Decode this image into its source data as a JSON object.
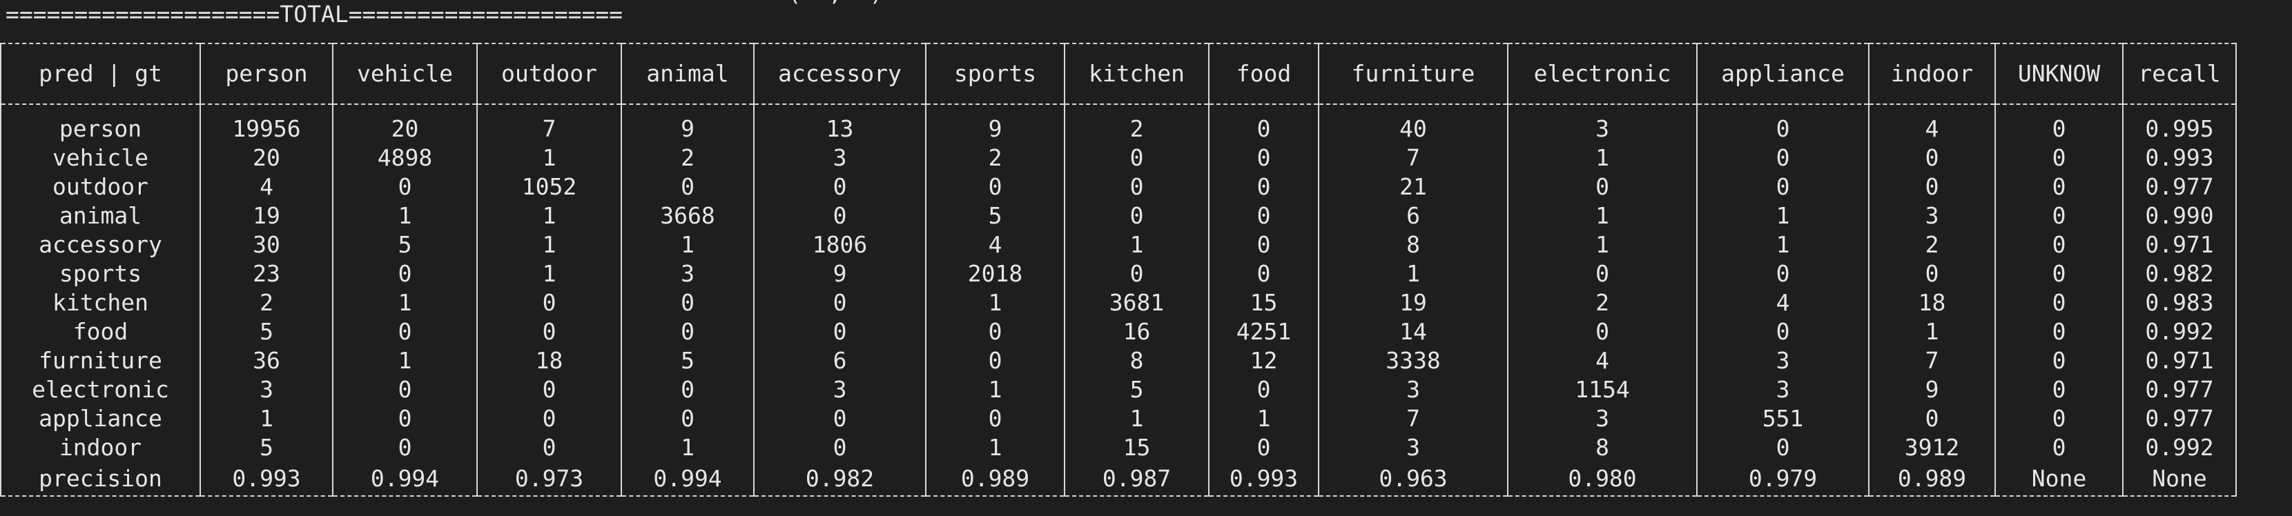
{
  "terminal": {
    "cut_off_line": "= = = = = = = = = = = = = = = = = = = = = = = = = = = =  (  ,  )",
    "banner": "====================TOTAL===================="
  },
  "table": {
    "headers": [
      "pred | gt",
      "person",
      "vehicle",
      "outdoor",
      "animal",
      "accessory",
      "sports",
      "kitchen",
      "food",
      "furniture",
      "electronic",
      "appliance",
      "indoor",
      "UNKNOW",
      "recall"
    ],
    "rows": [
      [
        "person",
        "19956",
        "20",
        "7",
        "9",
        "13",
        "9",
        "2",
        "0",
        "40",
        "3",
        "0",
        "4",
        "0",
        "0.995"
      ],
      [
        "vehicle",
        "20",
        "4898",
        "1",
        "2",
        "3",
        "2",
        "0",
        "0",
        "7",
        "1",
        "0",
        "0",
        "0",
        "0.993"
      ],
      [
        "outdoor",
        "4",
        "0",
        "1052",
        "0",
        "0",
        "0",
        "0",
        "0",
        "21",
        "0",
        "0",
        "0",
        "0",
        "0.977"
      ],
      [
        "animal",
        "19",
        "1",
        "1",
        "3668",
        "0",
        "5",
        "0",
        "0",
        "6",
        "1",
        "1",
        "3",
        "0",
        "0.990"
      ],
      [
        "accessory",
        "30",
        "5",
        "1",
        "1",
        "1806",
        "4",
        "1",
        "0",
        "8",
        "1",
        "1",
        "2",
        "0",
        "0.971"
      ],
      [
        "sports",
        "23",
        "0",
        "1",
        "3",
        "9",
        "2018",
        "0",
        "0",
        "1",
        "0",
        "0",
        "0",
        "0",
        "0.982"
      ],
      [
        "kitchen",
        "2",
        "1",
        "0",
        "0",
        "0",
        "1",
        "3681",
        "15",
        "19",
        "2",
        "4",
        "18",
        "0",
        "0.983"
      ],
      [
        "food",
        "5",
        "0",
        "0",
        "0",
        "0",
        "0",
        "16",
        "4251",
        "14",
        "0",
        "0",
        "1",
        "0",
        "0.992"
      ],
      [
        "furniture",
        "36",
        "1",
        "18",
        "5",
        "6",
        "0",
        "8",
        "12",
        "3338",
        "4",
        "3",
        "7",
        "0",
        "0.971"
      ],
      [
        "electronic",
        "3",
        "0",
        "0",
        "0",
        "3",
        "1",
        "5",
        "0",
        "3",
        "1154",
        "3",
        "9",
        "0",
        "0.977"
      ],
      [
        "appliance",
        "1",
        "0",
        "0",
        "0",
        "0",
        "0",
        "1",
        "1",
        "7",
        "3",
        "551",
        "0",
        "0",
        "0.977"
      ],
      [
        "indoor",
        "5",
        "0",
        "0",
        "1",
        "0",
        "1",
        "15",
        "0",
        "3",
        "8",
        "0",
        "3912",
        "0",
        "0.992"
      ],
      [
        "precision",
        "0.993",
        "0.994",
        "0.973",
        "0.994",
        "0.982",
        "0.989",
        "0.987",
        "0.993",
        "0.963",
        "0.980",
        "0.979",
        "0.989",
        "None",
        "None"
      ]
    ]
  }
}
